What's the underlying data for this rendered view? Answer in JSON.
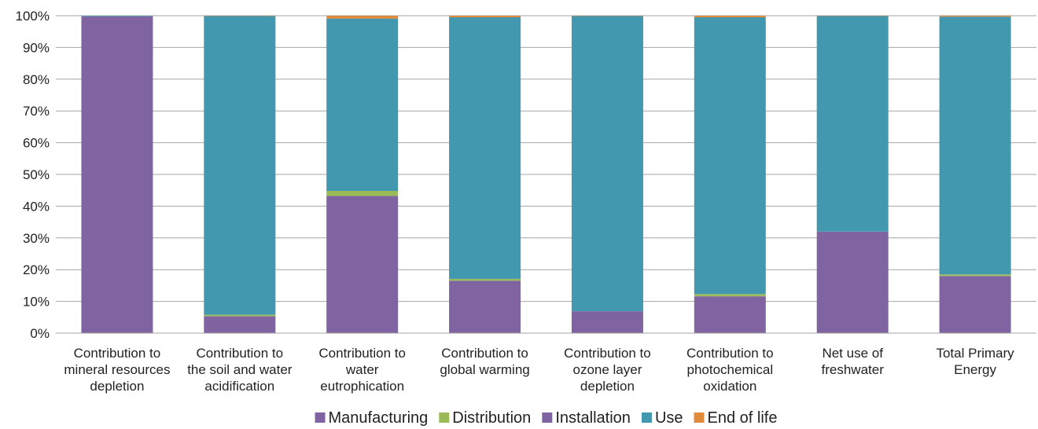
{
  "chart_data": {
    "type": "bar",
    "stacked": true,
    "percent_scale": true,
    "title": "",
    "xlabel": "",
    "ylabel": "",
    "ylim": [
      0,
      100
    ],
    "yticks": [
      0,
      10,
      20,
      30,
      40,
      50,
      60,
      70,
      80,
      90,
      100
    ],
    "ytick_labels": [
      "0%",
      "10%",
      "20%",
      "30%",
      "40%",
      "50%",
      "60%",
      "70%",
      "80%",
      "90%",
      "100%"
    ],
    "grid": true,
    "legend_position": "bottom",
    "categories": [
      [
        "Contribution to",
        "mineral resources",
        "depletion"
      ],
      [
        "Contribution to",
        "the soil and water",
        "acidification"
      ],
      [
        "Contribution to",
        "water",
        "eutrophication"
      ],
      [
        "Contribution to",
        "global warming"
      ],
      [
        "Contribution to",
        "ozone layer",
        "depletion"
      ],
      [
        "Contribution to",
        "photochemical",
        "oxidation"
      ],
      [
        "Net use of",
        "freshwater"
      ],
      [
        "Total Primary",
        "Energy"
      ]
    ],
    "series": [
      {
        "name": "Manufacturing",
        "color": "#8064a2",
        "values": [
          99.8,
          5.3,
          43.2,
          16.5,
          6.9,
          11.6,
          32.0,
          18.0
        ]
      },
      {
        "name": "Distribution",
        "color": "#9bbb59",
        "values": [
          0.0,
          0.5,
          1.6,
          0.6,
          0.0,
          0.7,
          0.0,
          0.5
        ]
      },
      {
        "name": "Installation",
        "color": "#8064a2",
        "values": [
          0.0,
          0.0,
          0.0,
          0.0,
          0.0,
          0.0,
          0.0,
          0.0
        ]
      },
      {
        "name": "Use",
        "color": "#4198af",
        "values": [
          0.2,
          94.1,
          54.3,
          82.4,
          93.0,
          87.2,
          67.9,
          81.2
        ]
      },
      {
        "name": "End of life",
        "color": "#e08a3c",
        "values": [
          0.0,
          0.1,
          0.9,
          0.5,
          0.1,
          0.5,
          0.1,
          0.3
        ]
      }
    ]
  },
  "colors": {
    "grid": "#a6a6a6",
    "axis": "#a6a6a6",
    "text": "#222222"
  }
}
